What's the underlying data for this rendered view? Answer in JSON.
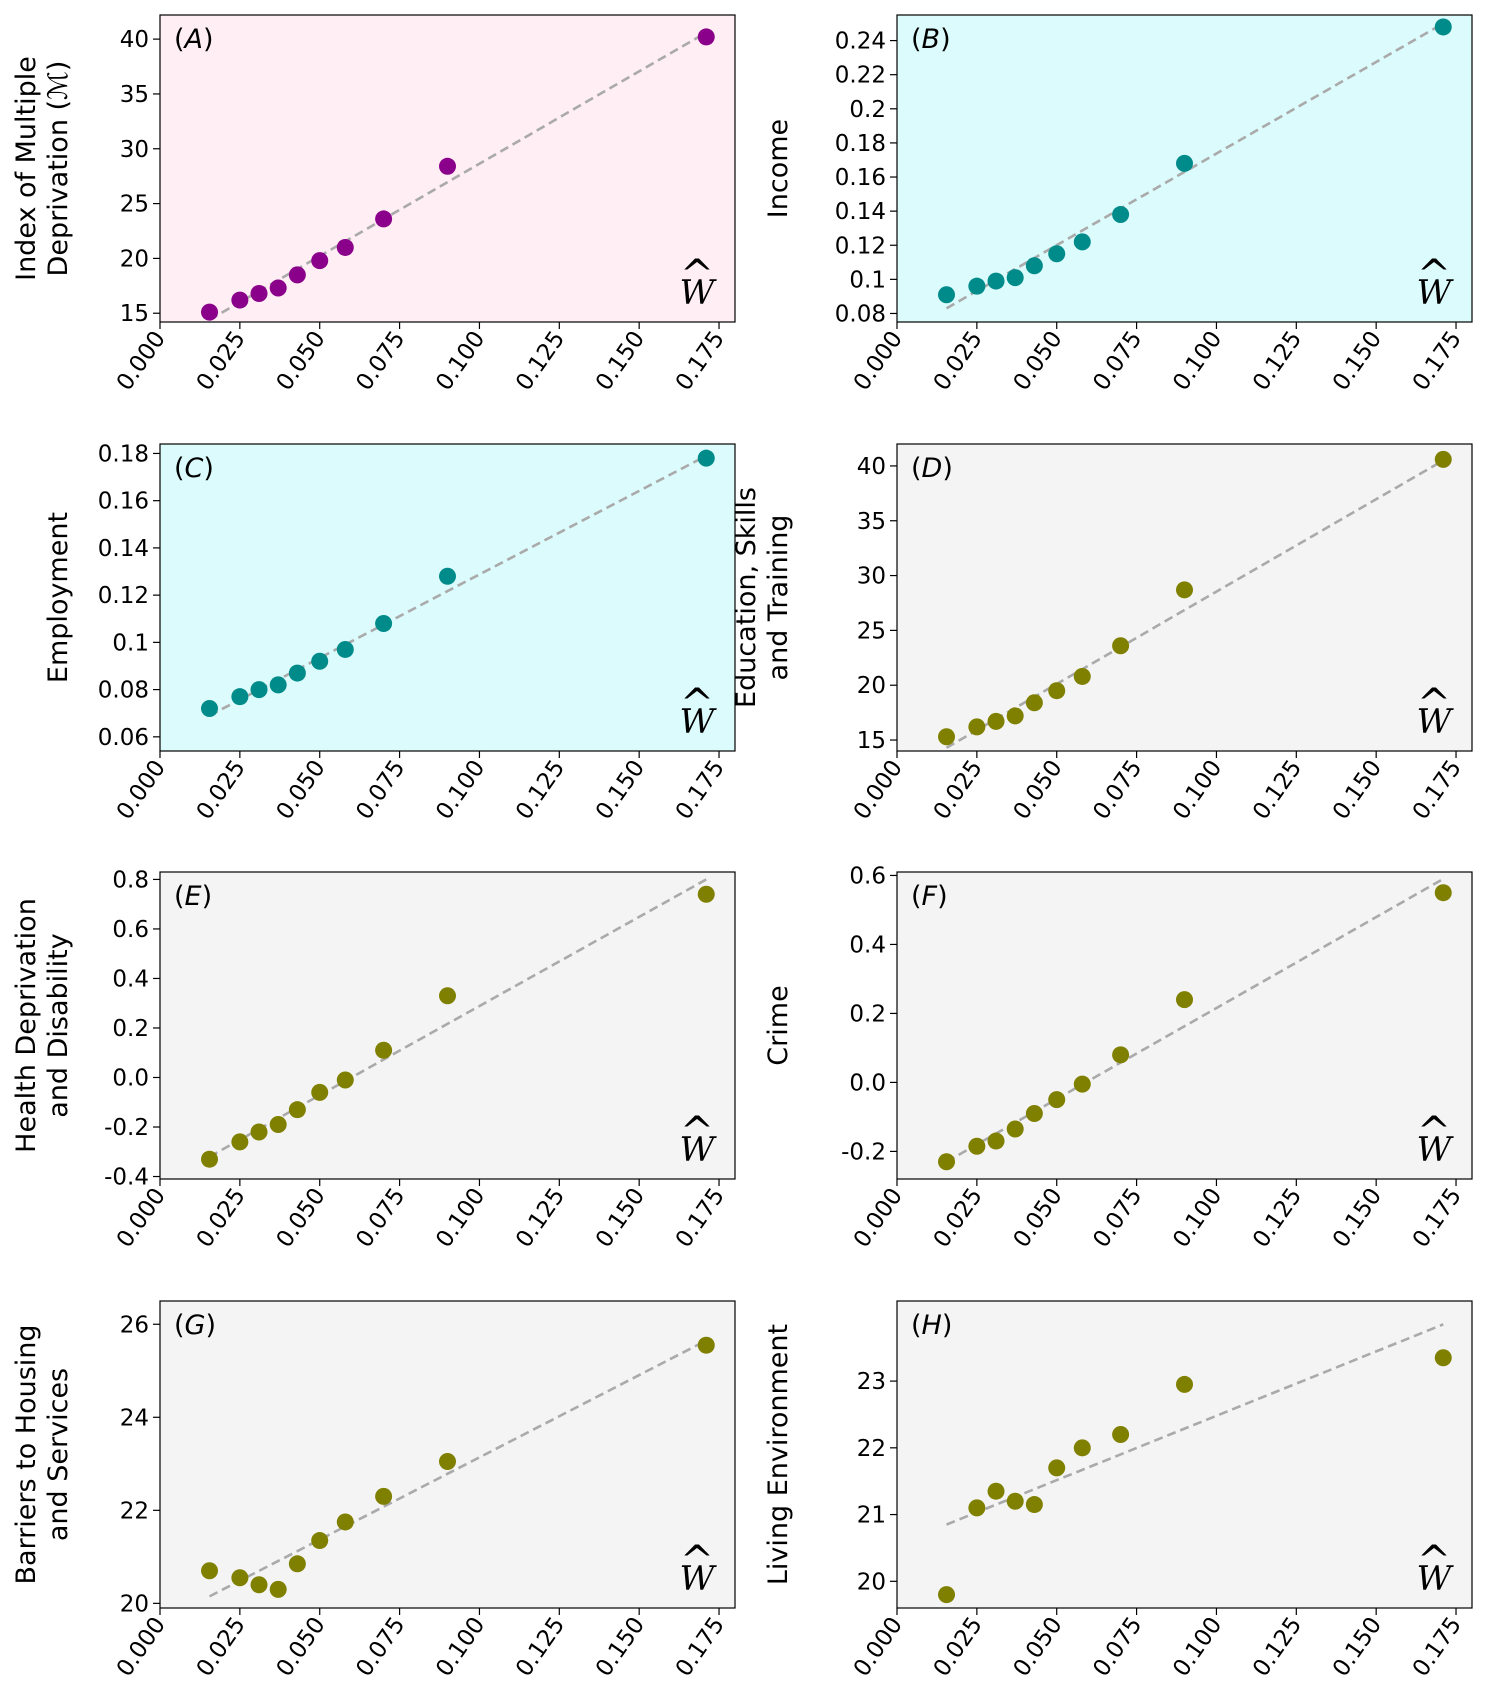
{
  "x_symbol": "W",
  "x_hat": "^",
  "x_ticks": [
    "0.000",
    "0.025",
    "0.050",
    "0.075",
    "0.100",
    "0.125",
    "0.150",
    "0.175"
  ],
  "colors": {
    "purple": "#8b008b",
    "teal": "#008b8b",
    "olive": "#808000",
    "pink_bg": "#ffeef3",
    "cyan_bg": "#dcfbfc",
    "grey_bg": "#f4f4f4",
    "fit_line": "#aaaaaa"
  },
  "chart_data": [
    {
      "type": "scatter",
      "panel": "A",
      "ylabel_lines": [
        "Index of Multiple",
        "Deprivation (ℳ)"
      ],
      "xlim": [
        0,
        0.18
      ],
      "ylim": [
        14.2,
        42.2
      ],
      "yticks": [
        15,
        20,
        25,
        30,
        35,
        40
      ],
      "ytick_labels": [
        "15",
        "20",
        "25",
        "30",
        "35",
        "40"
      ],
      "marker_color": "purple",
      "background": "pink_bg",
      "points": {
        "x": [
          0.0155,
          0.025,
          0.031,
          0.037,
          0.043,
          0.05,
          0.058,
          0.07,
          0.09,
          0.171
        ],
        "y": [
          15.1,
          16.2,
          16.8,
          17.3,
          18.5,
          19.8,
          21.0,
          23.6,
          28.4,
          40.2
        ]
      },
      "fit": {
        "x": [
          0.0155,
          0.171
        ],
        "y": [
          14.4,
          40.6
        ]
      }
    },
    {
      "type": "scatter",
      "panel": "B",
      "ylabel_lines": [
        "Income"
      ],
      "xlim": [
        0,
        0.18
      ],
      "ylim": [
        0.075,
        0.255
      ],
      "yticks": [
        0.08,
        0.1,
        0.12,
        0.14,
        0.16,
        0.18,
        0.2,
        0.22,
        0.24
      ],
      "ytick_labels": [
        "0.08",
        "0.1",
        "0.12",
        "0.14",
        "0.16",
        "0.18",
        "0.2",
        "0.22",
        "0.24"
      ],
      "marker_color": "teal",
      "background": "cyan_bg",
      "points": {
        "x": [
          0.0155,
          0.025,
          0.031,
          0.037,
          0.043,
          0.05,
          0.058,
          0.07,
          0.09,
          0.171
        ],
        "y": [
          0.091,
          0.096,
          0.099,
          0.101,
          0.108,
          0.115,
          0.122,
          0.138,
          0.168,
          0.248
        ]
      },
      "fit": {
        "x": [
          0.0155,
          0.171
        ],
        "y": [
          0.083,
          0.25
        ]
      }
    },
    {
      "type": "scatter",
      "panel": "C",
      "ylabel_lines": [
        "Employment"
      ],
      "xlim": [
        0,
        0.18
      ],
      "ylim": [
        0.054,
        0.184
      ],
      "yticks": [
        0.06,
        0.08,
        0.1,
        0.12,
        0.14,
        0.16,
        0.18
      ],
      "ytick_labels": [
        "0.06",
        "0.08",
        "0.1",
        "0.12",
        "0.14",
        "0.16",
        "0.18"
      ],
      "marker_color": "teal",
      "background": "cyan_bg",
      "points": {
        "x": [
          0.0155,
          0.025,
          0.031,
          0.037,
          0.043,
          0.05,
          0.058,
          0.07,
          0.09,
          0.171
        ],
        "y": [
          0.072,
          0.077,
          0.08,
          0.082,
          0.087,
          0.092,
          0.097,
          0.108,
          0.128,
          0.178
        ]
      },
      "fit": {
        "x": [
          0.0155,
          0.171
        ],
        "y": [
          0.069,
          0.179
        ]
      }
    },
    {
      "type": "scatter",
      "panel": "D",
      "ylabel_lines": [
        "Education, Skills",
        "and Training"
      ],
      "xlim": [
        0,
        0.18
      ],
      "ylim": [
        14.0,
        42.0
      ],
      "yticks": [
        15,
        20,
        25,
        30,
        35,
        40
      ],
      "ytick_labels": [
        "15",
        "20",
        "25",
        "30",
        "35",
        "40"
      ],
      "marker_color": "olive",
      "background": "grey_bg",
      "points": {
        "x": [
          0.0155,
          0.025,
          0.031,
          0.037,
          0.043,
          0.05,
          0.058,
          0.07,
          0.09,
          0.171
        ],
        "y": [
          15.3,
          16.2,
          16.7,
          17.2,
          18.4,
          19.5,
          20.8,
          23.6,
          28.7,
          40.6
        ]
      },
      "fit": {
        "x": [
          0.0155,
          0.171
        ],
        "y": [
          14.3,
          40.5
        ]
      }
    },
    {
      "type": "scatter",
      "panel": "E",
      "ylabel_lines": [
        "Health Deprivation",
        "and Disability"
      ],
      "xlim": [
        0,
        0.18
      ],
      "ylim": [
        -0.41,
        0.83
      ],
      "yticks": [
        -0.4,
        -0.2,
        0.0,
        0.2,
        0.4,
        0.6,
        0.8
      ],
      "ytick_labels": [
        "-0.4",
        "-0.2",
        "0.0",
        "0.2",
        "0.4",
        "0.6",
        "0.8"
      ],
      "marker_color": "olive",
      "background": "grey_bg",
      "points": {
        "x": [
          0.0155,
          0.025,
          0.031,
          0.037,
          0.043,
          0.05,
          0.058,
          0.07,
          0.09,
          0.171
        ],
        "y": [
          -0.33,
          -0.26,
          -0.22,
          -0.19,
          -0.13,
          -0.06,
          -0.01,
          0.11,
          0.33,
          0.74
        ]
      },
      "fit": {
        "x": [
          0.0155,
          0.171
        ],
        "y": [
          -0.32,
          0.8
        ]
      }
    },
    {
      "type": "scatter",
      "panel": "F",
      "ylabel_lines": [
        "Crime"
      ],
      "xlim": [
        0,
        0.18
      ],
      "ylim": [
        -0.28,
        0.61
      ],
      "yticks": [
        -0.2,
        0.0,
        0.2,
        0.4,
        0.6
      ],
      "ytick_labels": [
        "-0.2",
        "0.0",
        "0.2",
        "0.4",
        "0.6"
      ],
      "marker_color": "olive",
      "background": "grey_bg",
      "points": {
        "x": [
          0.0155,
          0.025,
          0.031,
          0.037,
          0.043,
          0.05,
          0.058,
          0.07,
          0.09,
          0.171
        ],
        "y": [
          -0.23,
          -0.185,
          -0.17,
          -0.135,
          -0.09,
          -0.05,
          -0.005,
          0.08,
          0.24,
          0.55
        ]
      },
      "fit": {
        "x": [
          0.0155,
          0.171
        ],
        "y": [
          -0.23,
          0.59
        ]
      }
    },
    {
      "type": "scatter",
      "panel": "G",
      "ylabel_lines": [
        "Barriers to Housing",
        "and Services"
      ],
      "xlim": [
        0,
        0.18
      ],
      "ylim": [
        19.9,
        26.5
      ],
      "yticks": [
        20,
        22,
        24,
        26
      ],
      "ytick_labels": [
        "20",
        "22",
        "24",
        "26"
      ],
      "marker_color": "olive",
      "background": "grey_bg",
      "points": {
        "x": [
          0.0155,
          0.025,
          0.031,
          0.037,
          0.043,
          0.05,
          0.058,
          0.07,
          0.09,
          0.171
        ],
        "y": [
          20.7,
          20.55,
          20.4,
          20.3,
          20.85,
          21.35,
          21.75,
          22.3,
          23.05,
          25.55
        ]
      },
      "fit": {
        "x": [
          0.0155,
          0.171
        ],
        "y": [
          20.15,
          25.65
        ]
      }
    },
    {
      "type": "scatter",
      "panel": "H",
      "ylabel_lines": [
        "Living Environment"
      ],
      "xlim": [
        0,
        0.18
      ],
      "ylim": [
        19.6,
        24.2
      ],
      "yticks": [
        20,
        21,
        22,
        23
      ],
      "ytick_labels": [
        "20",
        "21",
        "22",
        "23"
      ],
      "marker_color": "olive",
      "background": "grey_bg",
      "points": {
        "x": [
          0.0155,
          0.025,
          0.031,
          0.037,
          0.043,
          0.05,
          0.058,
          0.07,
          0.09,
          0.171
        ],
        "y": [
          19.8,
          21.1,
          21.35,
          21.2,
          21.15,
          21.7,
          22.0,
          22.2,
          22.95,
          23.35
        ]
      },
      "fit": {
        "x": [
          0.0155,
          0.171
        ],
        "y": [
          20.85,
          23.85
        ]
      }
    }
  ]
}
